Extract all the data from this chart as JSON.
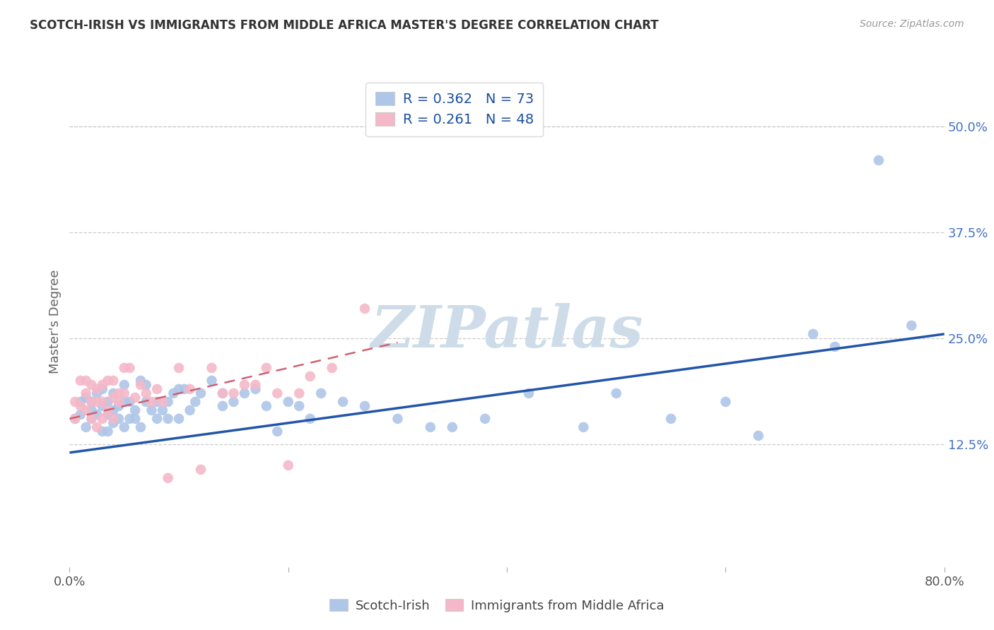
{
  "title": "SCOTCH-IRISH VS IMMIGRANTS FROM MIDDLE AFRICA MASTER'S DEGREE CORRELATION CHART",
  "source": "Source: ZipAtlas.com",
  "ylabel_text": "Master's Degree",
  "xlim": [
    0.0,
    0.8
  ],
  "ylim": [
    -0.02,
    0.56
  ],
  "xticks": [
    0.0,
    0.2,
    0.4,
    0.6,
    0.8
  ],
  "xtick_labels": [
    "0.0%",
    "",
    "",
    "",
    "80.0%"
  ],
  "ytick_labels": [
    "12.5%",
    "25.0%",
    "37.5%",
    "50.0%"
  ],
  "yticks": [
    0.125,
    0.25,
    0.375,
    0.5
  ],
  "blue_R": 0.362,
  "blue_N": 73,
  "pink_R": 0.261,
  "pink_N": 48,
  "blue_color": "#aec6e8",
  "pink_color": "#f4b8c8",
  "blue_line_color": "#2255aa",
  "pink_line_color": "#d06070",
  "watermark": "ZIPatlas",
  "watermark_color": "#cddce8",
  "legend_label_blue": "Scotch-Irish",
  "legend_label_pink": "Immigrants from Middle Africa",
  "blue_scatter_x": [
    0.005,
    0.01,
    0.01,
    0.015,
    0.015,
    0.02,
    0.02,
    0.02,
    0.025,
    0.025,
    0.03,
    0.03,
    0.03,
    0.035,
    0.035,
    0.035,
    0.04,
    0.04,
    0.04,
    0.045,
    0.045,
    0.05,
    0.05,
    0.05,
    0.055,
    0.055,
    0.06,
    0.06,
    0.065,
    0.065,
    0.07,
    0.07,
    0.075,
    0.08,
    0.08,
    0.085,
    0.09,
    0.09,
    0.095,
    0.1,
    0.1,
    0.105,
    0.11,
    0.115,
    0.12,
    0.13,
    0.14,
    0.14,
    0.15,
    0.16,
    0.17,
    0.18,
    0.19,
    0.2,
    0.21,
    0.22,
    0.23,
    0.25,
    0.27,
    0.3,
    0.33,
    0.35,
    0.38,
    0.42,
    0.47,
    0.5,
    0.55,
    0.6,
    0.63,
    0.68,
    0.7,
    0.74,
    0.77
  ],
  "blue_scatter_y": [
    0.155,
    0.16,
    0.175,
    0.145,
    0.18,
    0.155,
    0.165,
    0.175,
    0.16,
    0.185,
    0.14,
    0.17,
    0.19,
    0.16,
    0.14,
    0.175,
    0.165,
    0.185,
    0.15,
    0.17,
    0.155,
    0.145,
    0.175,
    0.195,
    0.155,
    0.175,
    0.155,
    0.165,
    0.145,
    0.2,
    0.175,
    0.195,
    0.165,
    0.175,
    0.155,
    0.165,
    0.155,
    0.175,
    0.185,
    0.19,
    0.155,
    0.19,
    0.165,
    0.175,
    0.185,
    0.2,
    0.17,
    0.185,
    0.175,
    0.185,
    0.19,
    0.17,
    0.14,
    0.175,
    0.17,
    0.155,
    0.185,
    0.175,
    0.17,
    0.155,
    0.145,
    0.145,
    0.155,
    0.185,
    0.145,
    0.185,
    0.155,
    0.175,
    0.135,
    0.255,
    0.24,
    0.46,
    0.265
  ],
  "pink_scatter_x": [
    0.005,
    0.005,
    0.01,
    0.01,
    0.015,
    0.015,
    0.015,
    0.02,
    0.02,
    0.02,
    0.025,
    0.025,
    0.025,
    0.03,
    0.03,
    0.03,
    0.035,
    0.035,
    0.04,
    0.04,
    0.04,
    0.045,
    0.045,
    0.05,
    0.05,
    0.055,
    0.06,
    0.065,
    0.07,
    0.075,
    0.08,
    0.085,
    0.09,
    0.1,
    0.11,
    0.12,
    0.13,
    0.14,
    0.15,
    0.16,
    0.17,
    0.18,
    0.19,
    0.2,
    0.21,
    0.22,
    0.24,
    0.27
  ],
  "pink_scatter_y": [
    0.155,
    0.175,
    0.17,
    0.2,
    0.165,
    0.185,
    0.2,
    0.175,
    0.195,
    0.155,
    0.145,
    0.175,
    0.19,
    0.175,
    0.155,
    0.195,
    0.2,
    0.165,
    0.18,
    0.155,
    0.2,
    0.185,
    0.175,
    0.215,
    0.185,
    0.215,
    0.18,
    0.195,
    0.185,
    0.175,
    0.19,
    0.175,
    0.085,
    0.215,
    0.19,
    0.095,
    0.215,
    0.185,
    0.185,
    0.195,
    0.195,
    0.215,
    0.185,
    0.1,
    0.185,
    0.205,
    0.215,
    0.285
  ],
  "blue_line_x": [
    0.0,
    0.8
  ],
  "blue_line_y": [
    0.115,
    0.255
  ],
  "pink_line_x": [
    0.0,
    0.3
  ],
  "pink_line_y": [
    0.155,
    0.245
  ]
}
